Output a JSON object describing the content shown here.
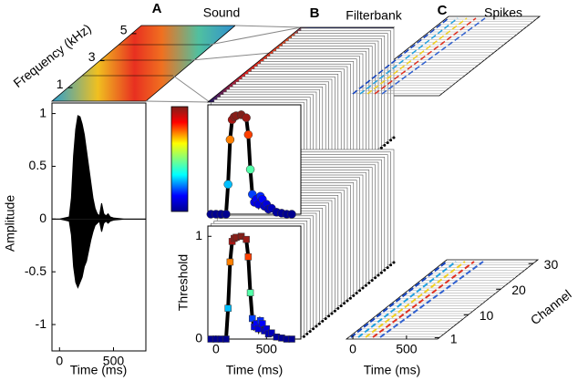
{
  "chart_data": [
    {
      "type": "area",
      "label": "A",
      "title": "Sound",
      "x_label": "Time (ms)",
      "y_label": "Amplitude",
      "x": [
        -70,
        0,
        90,
        110,
        130,
        150,
        170,
        190,
        210,
        230,
        250,
        270,
        290,
        310,
        330,
        350,
        370,
        390,
        410,
        430,
        450,
        470,
        500,
        600,
        700,
        800
      ],
      "series": [
        {
          "color": "#000000",
          "values": [
            0,
            0,
            0.02,
            0.2,
            0.6,
            0.85,
            0.98,
            0.97,
            0.9,
            0.8,
            0.65,
            0.5,
            0.35,
            0.2,
            0.1,
            0.05,
            0.03,
            0.15,
            0.05,
            0.03,
            0.05,
            0.02,
            0.01,
            0,
            0,
            0
          ]
        },
        {
          "color": "#000000",
          "values": [
            0,
            0,
            -0.02,
            -0.15,
            -0.45,
            -0.6,
            -0.65,
            -0.6,
            -0.55,
            -0.45,
            -0.4,
            -0.3,
            -0.2,
            -0.12,
            -0.06,
            -0.04,
            -0.02,
            -0.12,
            -0.04,
            -0.02,
            -0.04,
            -0.02,
            -0.01,
            0,
            0,
            0
          ]
        }
      ],
      "xlim": [
        -70,
        800
      ],
      "ylim": [
        -1.25,
        1.1
      ],
      "xticks": [
        0,
        500
      ],
      "yticks": [
        -1,
        -0.5,
        0,
        0.5,
        1
      ]
    },
    {
      "type": "heatmap",
      "y_label": "Frequency (kHz)",
      "ylim": [
        0,
        5.6
      ],
      "yticks": [
        1,
        3,
        5
      ]
    },
    {
      "type": "line",
      "label": "B",
      "title": "Filterbank",
      "x_label": "Time (ms)",
      "y_label": "Threshold",
      "x": [
        -50,
        0,
        50,
        100,
        120,
        140,
        160,
        180,
        200,
        250,
        300,
        320,
        340,
        360,
        380,
        400,
        420,
        440,
        460,
        480,
        500,
        520,
        550,
        600,
        650,
        700,
        750
      ],
      "values": [
        0,
        0,
        0,
        0,
        0.3,
        0.75,
        0.95,
        0.98,
        0.99,
        1,
        0.97,
        0.8,
        0.45,
        0.2,
        0.12,
        0.15,
        0.1,
        0.18,
        0.15,
        0.08,
        0.1,
        0.05,
        0.06,
        0.02,
        0.01,
        0,
        0
      ],
      "color": "#000000",
      "xlim": [
        -80,
        840
      ],
      "ylim": [
        0,
        1.1
      ],
      "xticks": [
        0,
        500
      ],
      "yticks": [
        0,
        1
      ]
    },
    {
      "type": "raster",
      "label": "C",
      "title": "Spikes",
      "x_label": "Time (ms)",
      "z_label": "Channel",
      "xlim": [
        -60,
        790
      ],
      "xticks": [
        0,
        500
      ],
      "zlim": [
        0.5,
        31.5
      ],
      "zticks": [
        1,
        10,
        20,
        30
      ]
    }
  ]
}
